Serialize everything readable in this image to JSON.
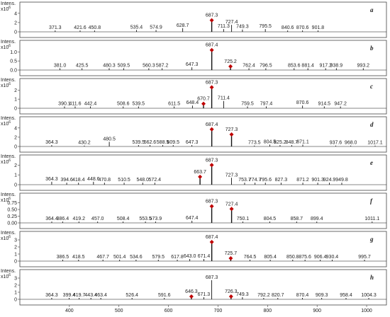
{
  "chart_data": [
    {
      "type": "stem",
      "panel": "a",
      "y_label": "Intens.",
      "y_scale_base": "x10",
      "y_scale_exp": "6",
      "color": "#111111",
      "marked_color": "#c00000",
      "xlim": [
        300,
        1040
      ],
      "ylim": [
        0,
        5.5
      ],
      "yticks": [
        0,
        2,
        4
      ],
      "x": [
        371.3,
        421.6,
        450.8,
        535.4,
        574.9,
        628.7,
        711.3,
        727.4,
        749.3,
        795.5,
        840.6,
        870.6,
        901.8
      ],
      "x_labels": [
        "371.3",
        "421.6",
        "450.8",
        "535.4",
        "574.9",
        "628.7",
        "711.3",
        "727.4",
        "749.3",
        "795.5",
        "840.6",
        "870.6",
        "901.8"
      ],
      "values": [
        0.3,
        0.3,
        0.3,
        0.4,
        0.4,
        0.8,
        0.6,
        1.5,
        0.5,
        0.6,
        0.3,
        0.3,
        0.3
      ],
      "marked_x": [
        687.3
      ],
      "marked_x_labels": [
        "687.3"
      ],
      "marked_values": [
        2.5
      ]
    },
    {
      "type": "stem",
      "panel": "b",
      "y_label": "Intens.",
      "y_scale_base": "x10",
      "y_scale_exp": "6",
      "color": "#111111",
      "marked_color": "#c00000",
      "xlim": [
        300,
        1040
      ],
      "ylim": [
        0,
        1.4
      ],
      "yticks": [
        {
          "value": 0,
          "label": "0.0"
        },
        {
          "value": 0.5,
          "label": "0.5"
        },
        {
          "value": 1,
          "label": "1.0"
        }
      ],
      "x": [
        381.0,
        425.5,
        480.3,
        509.5,
        560.3,
        587.2,
        647.3,
        762.4,
        796.5,
        853.6,
        881.4,
        917.2,
        938.9,
        993.2
      ],
      "x_labels": [
        "381.0",
        "425.5",
        "480.3",
        "509.5",
        "560.3",
        "587.2",
        "647.3",
        "762.4",
        "796.5",
        "853.6",
        "881.4",
        "917.2",
        "938.9",
        "993.2"
      ],
      "values": [
        0.1,
        0.1,
        0.1,
        0.1,
        0.1,
        0.1,
        0.15,
        0.1,
        0.1,
        0.1,
        0.1,
        0.1,
        0.1,
        0.1
      ],
      "marked_x": [
        687.4,
        725.2
      ],
      "marked_x_labels": [
        "687.4",
        "725.2"
      ],
      "marked_values": [
        1.1,
        0.2
      ]
    },
    {
      "type": "stem",
      "panel": "c",
      "y_label": "Intens.",
      "y_scale_base": "x10",
      "y_scale_exp": "6",
      "color": "#111111",
      "marked_color": "#c00000",
      "xlim": [
        300,
        1040
      ],
      "ylim": [
        0,
        2.8
      ],
      "yticks": [
        0,
        1,
        2
      ],
      "x": [
        390.1,
        411.6,
        442.4,
        508.6,
        539.5,
        611.5,
        648.4,
        711.4,
        759.5,
        797.4,
        870.6,
        914.5,
        947.2
      ],
      "x_labels": [
        "390.1",
        "411.6",
        "442.4",
        "508.6",
        "539.5",
        "611.5",
        "648.4",
        "711.4",
        "759.5",
        "797.4",
        "870.6",
        "914.5",
        "947.2"
      ],
      "values": [
        0.2,
        0.2,
        0.2,
        0.2,
        0.2,
        0.2,
        0.3,
        0.8,
        0.2,
        0.2,
        0.3,
        0.2,
        0.2
      ],
      "marked_x": [
        670.7,
        687.3
      ],
      "marked_x_labels": [
        "670.7",
        "687.3"
      ],
      "marked_values": [
        0.5,
        2.3
      ]
    },
    {
      "type": "stem",
      "panel": "d",
      "y_label": "Intens.",
      "y_scale_base": "x10",
      "y_scale_exp": "6",
      "color": "#111111",
      "marked_color": "#c00000",
      "xlim": [
        300,
        1040
      ],
      "ylim": [
        0,
        5.5
      ],
      "yticks": [
        0,
        2,
        4
      ],
      "x": [
        364.3,
        430.2,
        480.5,
        539.5,
        562.6,
        588.5,
        609.5,
        647.3,
        773.5,
        804.5,
        825.2,
        848.7,
        871.1,
        937.6,
        968.0,
        1017.1
      ],
      "x_labels": [
        "364.3",
        "430.2",
        "480.5",
        "539.5",
        "562.6",
        "588.5",
        "609.5",
        "647.3",
        "773.5",
        "804.5",
        "825.2",
        "848.7",
        "871.1",
        "937.6",
        "968.0",
        "1017.1"
      ],
      "values": [
        0.3,
        0.2,
        1.0,
        0.3,
        0.3,
        0.3,
        0.3,
        0.3,
        0.2,
        0.4,
        0.3,
        0.3,
        0.4,
        0.2,
        0.2,
        0.2
      ],
      "marked_x": [
        687.4,
        727.3
      ],
      "marked_x_labels": [
        "687.4",
        "727.3"
      ],
      "marked_values": [
        3.7,
        2.6
      ]
    },
    {
      "type": "stem",
      "panel": "e",
      "y_label": "Intens.",
      "y_scale_base": "x10",
      "y_scale_exp": "6",
      "color": "#111111",
      "marked_color": "#c00000",
      "xlim": [
        300,
        1040
      ],
      "ylim": [
        0,
        2.6
      ],
      "yticks": [
        0,
        1,
        2
      ],
      "x": [
        364.3,
        394.6,
        418.4,
        448.6,
        470.8,
        510.5,
        548.0,
        572.4,
        727.3,
        753.7,
        774.7,
        795.6,
        827.3,
        871.2,
        901.3,
        924.9,
        949.8
      ],
      "x_labels": [
        "364.3",
        "394.6",
        "418.4",
        "448.6",
        "470.8",
        "510.5",
        "548.0",
        "572.4",
        "727.3",
        "753.7",
        "774.7",
        "795.6",
        "827.3",
        "871.2",
        "901.3",
        "924.9",
        "949.8"
      ],
      "values": [
        0.3,
        0.2,
        0.2,
        0.3,
        0.2,
        0.2,
        0.2,
        0.2,
        0.7,
        0.2,
        0.2,
        0.2,
        0.2,
        0.2,
        0.2,
        0.2,
        0.2
      ],
      "marked_x": [
        663.7,
        687.3
      ],
      "marked_x_labels": [
        "663.7",
        "687.3"
      ],
      "marked_values": [
        0.8,
        2.0
      ]
    },
    {
      "type": "stem",
      "panel": "f",
      "y_label": "Intens.",
      "y_scale_base": "x10",
      "y_scale_exp": "6",
      "color": "#111111",
      "marked_color": "#c00000",
      "xlim": [
        300,
        1040
      ],
      "ylim": [
        0,
        0.95
      ],
      "yticks": [
        {
          "value": 0,
          "label": "0.00"
        },
        {
          "value": 0.25,
          "label": "0.25"
        },
        {
          "value": 0.5,
          "label": "0.50"
        },
        {
          "value": 0.75,
          "label": "0.75"
        }
      ],
      "x": [
        364.4,
        386.4,
        419.2,
        457.0,
        508.4,
        553.5,
        573.9,
        647.4,
        750.1,
        804.5,
        858.7,
        899.4,
        1011.1
      ],
      "x_labels": [
        "364.4",
        "386.4",
        "419.2",
        "457.0",
        "508.4",
        "553.5",
        "573.9",
        "647.4",
        "750.1",
        "804.5",
        "858.7",
        "899.4",
        "1011.1"
      ],
      "values": [
        0.05,
        0.05,
        0.05,
        0.05,
        0.05,
        0.05,
        0.05,
        0.08,
        0.05,
        0.05,
        0.05,
        0.05,
        0.05
      ],
      "marked_x": [
        687.3,
        727.4
      ],
      "marked_x_labels": [
        "687.3",
        "727.4"
      ],
      "marked_values": [
        0.62,
        0.52
      ]
    },
    {
      "type": "stem",
      "panel": "g",
      "y_label": "Intens.",
      "y_scale_base": "x10",
      "y_scale_exp": "6",
      "color": "#111111",
      "marked_color": "#c00000",
      "xlim": [
        300,
        1040
      ],
      "ylim": [
        0,
        3.6
      ],
      "yticks": [
        0,
        1,
        2,
        3
      ],
      "x": [
        386.5,
        418.5,
        467.7,
        501.4,
        534.6,
        579.5,
        617.8,
        643.0,
        671.4,
        764.5,
        805.4,
        850.8,
        875.6,
        906.4,
        930.4,
        995.7
      ],
      "x_labels": [
        "386.5",
        "418.5",
        "467.7",
        "501.4",
        "534.6",
        "579.5",
        "617.8",
        "643.0",
        "671.4",
        "764.5",
        "805.4",
        "850.8",
        "875.6",
        "906.4",
        "930.4",
        "995.7"
      ],
      "values": [
        0.2,
        0.2,
        0.2,
        0.2,
        0.2,
        0.2,
        0.2,
        0.3,
        0.3,
        0.2,
        0.2,
        0.2,
        0.2,
        0.2,
        0.2,
        0.2
      ],
      "marked_x": [
        687.4,
        725.7
      ],
      "marked_x_labels": [
        "687.4",
        "725.7"
      ],
      "marked_values": [
        2.7,
        0.4
      ]
    },
    {
      "type": "stem",
      "panel": "h",
      "y_label": "Intens.",
      "y_scale_base": "x10",
      "y_scale_exp": "6",
      "color": "#111111",
      "marked_color": "#c00000",
      "xlim": [
        300,
        1040
      ],
      "ylim": [
        0,
        3.6
      ],
      "yticks": [
        0,
        1,
        2,
        3
      ],
      "xticks": [
        400,
        500,
        600,
        700,
        800,
        900,
        1000
      ],
      "x": [
        364.3,
        399.4,
        419.7,
        443.4,
        463.4,
        526.4,
        591.6,
        671.3,
        687.3,
        749.3,
        792.2,
        820.7,
        870.4,
        909.3,
        958.4,
        1004.3
      ],
      "x_labels": [
        "364.3",
        "399.4",
        "419.7",
        "443.4",
        "463.4",
        "526.4",
        "591.6",
        "671.3",
        "687.3",
        "749.3",
        "792.2",
        "820.7",
        "870.4",
        "909.3",
        "958.4",
        "1004.3"
      ],
      "values": [
        0.2,
        0.2,
        0.2,
        0.2,
        0.2,
        0.2,
        0.2,
        0.3,
        2.7,
        0.3,
        0.2,
        0.2,
        0.2,
        0.2,
        0.2,
        0.2
      ],
      "marked_x": [
        646.3,
        726.3
      ],
      "marked_x_labels": [
        "646.3",
        "726.3"
      ],
      "marked_values": [
        0.4,
        0.4
      ]
    }
  ]
}
